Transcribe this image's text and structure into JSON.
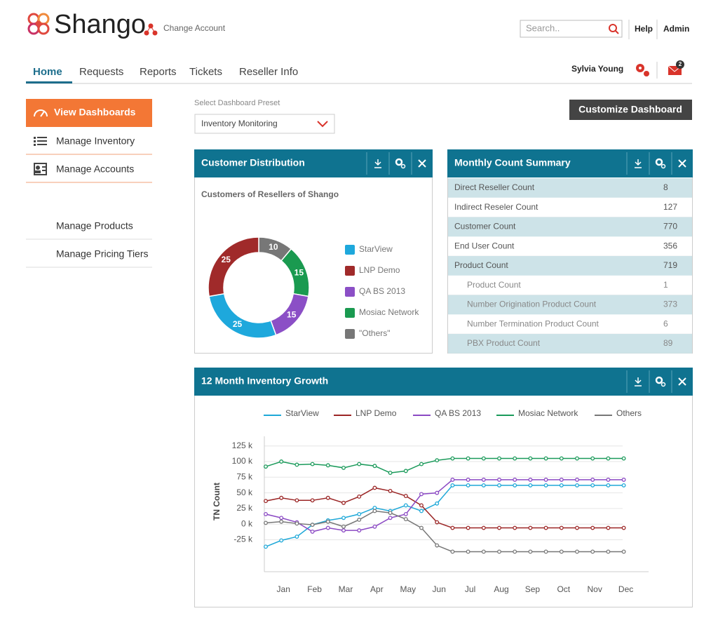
{
  "header": {
    "logo": "Shango",
    "change_account": "Change Account",
    "search_placeholder": "Search..",
    "links": [
      "Help",
      "Admin"
    ]
  },
  "nav": {
    "tabs": [
      "Home",
      "Requests",
      "Reports",
      "Tickets",
      "Reseller Info"
    ],
    "active": 0,
    "user": "Sylvia Young",
    "mail_badge": 2
  },
  "sidebar": {
    "items": [
      "View Dashboards",
      "Manage Inventory",
      "Manage Accounts",
      "Manage Products",
      "Manage Pricing Tiers"
    ],
    "active": 0
  },
  "dashboard": {
    "preset_label": "Select Dashboard Preset",
    "preset": "Inventory Monitoring",
    "customize": "Customize Dashboard"
  },
  "summary": {
    "title": "Monthly Count Summary",
    "rows": [
      {
        "label": "Direct Reseller Count",
        "value": 8
      },
      {
        "label": "Indirect Reseler Count",
        "value": 127
      },
      {
        "label": "Customer Count",
        "value": 770
      },
      {
        "label": "End User Count",
        "value": 356
      },
      {
        "label": "Product Count",
        "value": 719
      }
    ],
    "product_breakdown": [
      {
        "label": "Product Count",
        "value": 1
      },
      {
        "label": "Number Origination Product Count",
        "value": 373
      },
      {
        "label": "Number Termination Product Count",
        "value": 6
      },
      {
        "label": "PBX Product Count",
        "value": 89
      }
    ]
  },
  "chart_data": [
    {
      "type": "donut",
      "title": "Customer Distribution",
      "subtitle": "Customers of Resellers of Shango",
      "categories": [
        "\"Others\"",
        "Mosiac Network",
        "QA BS 2013",
        "StarView",
        "LNP Demo"
      ],
      "values": [
        10,
        15,
        15,
        25,
        25
      ],
      "colors": [
        "#777777",
        "#1a9a50",
        "#8b4fc6",
        "#1ea8dc",
        "#a02a2a"
      ],
      "legend": [
        3,
        4,
        2,
        1,
        0
      ]
    },
    {
      "type": "line",
      "title": "12 Month Inventory Growth",
      "y_label": "TN Count",
      "categories": [
        null,
        "Jan",
        null,
        "Feb",
        null,
        "Mar",
        null,
        "Apr",
        null,
        "May",
        null,
        "Jun",
        null,
        "Jul",
        null,
        "Aug",
        null,
        "Sep",
        null,
        "Oct",
        null,
        "Nov",
        null,
        "Dec"
      ],
      "ylim": [
        -76,
        137
      ],
      "yticks": [
        {
          "value": -25,
          "label": "-25 k"
        },
        {
          "value": 0,
          "label": "0 k"
        },
        {
          "value": 25,
          "label": "25 k"
        },
        {
          "value": 50,
          "label": "50 k"
        },
        {
          "value": 75,
          "label": "75 k"
        },
        {
          "value": 100,
          "label": "100 k"
        },
        {
          "value": 125,
          "label": "125 k"
        }
      ],
      "grid": true,
      "series": [
        {
          "name": "StarView",
          "color": "#1ea8d8",
          "values": [
            -36,
            -26,
            -20,
            -1,
            6,
            10,
            16,
            26,
            21,
            30,
            21,
            33,
            62,
            62,
            62,
            62,
            62,
            62,
            62,
            62,
            62,
            62,
            62,
            62
          ]
        },
        {
          "name": "LNP Demo",
          "color": "#9b2525",
          "values": [
            37,
            42,
            38,
            38,
            42,
            34,
            44,
            58,
            53,
            45,
            30,
            3,
            -6,
            -6,
            -6,
            -6,
            -6,
            -6,
            -6,
            -6,
            -6,
            -6,
            -6,
            -6
          ]
        },
        {
          "name": "QA BS 2013",
          "color": "#8b49c4",
          "values": [
            16,
            10,
            3,
            -12,
            -6,
            -10,
            -10,
            -4,
            10,
            16,
            48,
            50,
            71,
            71,
            71,
            71,
            71,
            71,
            71,
            71,
            71,
            71,
            71,
            71
          ]
        },
        {
          "name": "Mosiac Network",
          "color": "#1a9a5a",
          "values": [
            92,
            100,
            95,
            96,
            94,
            90,
            96,
            93,
            82,
            85,
            96,
            102,
            105,
            105,
            105,
            105,
            105,
            105,
            105,
            105,
            105,
            105,
            105,
            105
          ]
        },
        {
          "name": "Others",
          "color": "#777777",
          "values": [
            2,
            4,
            1,
            -1,
            4,
            -4,
            7,
            21,
            18,
            8,
            -6,
            -34,
            -44,
            -44,
            -44,
            -44,
            -44,
            -44,
            -44,
            -44,
            -44,
            -44,
            -44,
            -44
          ]
        }
      ]
    }
  ]
}
